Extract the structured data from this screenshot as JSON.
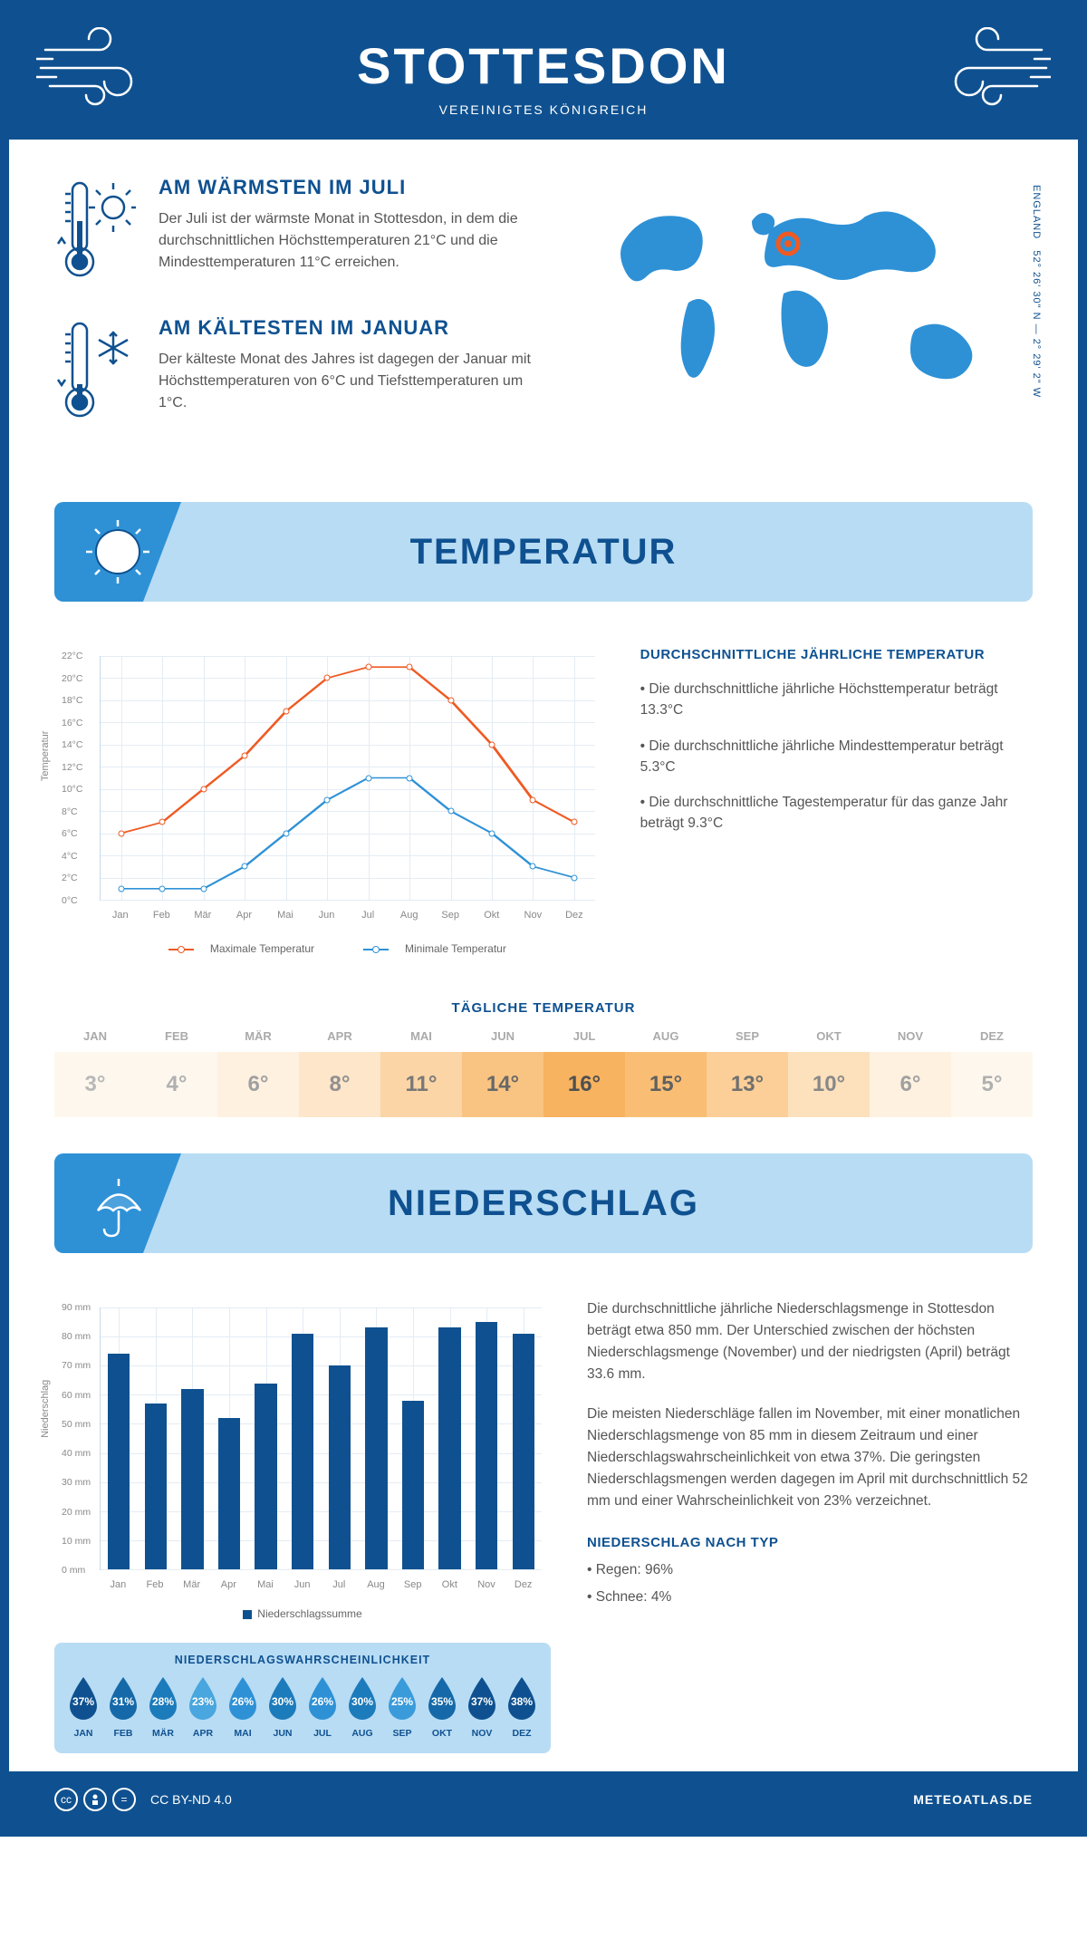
{
  "header": {
    "title": "STOTTESDON",
    "subtitle": "VEREINIGTES KÖNIGREICH"
  },
  "coords": "52° 26' 30\" N — 2° 29' 2\" W",
  "region_label": "ENGLAND",
  "facts": {
    "warm": {
      "title": "AM WÄRMSTEN IM JULI",
      "text": "Der Juli ist der wärmste Monat in Stottesdon, in dem die durchschnittlichen Höchsttemperaturen 21°C und die Mindesttemperaturen 11°C erreichen."
    },
    "cold": {
      "title": "AM KÄLTESTEN IM JANUAR",
      "text": "Der kälteste Monat des Jahres ist dagegen der Januar mit Höchsttemperaturen von 6°C und Tiefsttemperaturen um 1°C."
    }
  },
  "temp_section_title": "TEMPERATUR",
  "precip_section_title": "NIEDERSCHLAG",
  "months": [
    "Jan",
    "Feb",
    "Mär",
    "Apr",
    "Mai",
    "Jun",
    "Jul",
    "Aug",
    "Sep",
    "Okt",
    "Nov",
    "Dez"
  ],
  "months_uc": [
    "JAN",
    "FEB",
    "MÄR",
    "APR",
    "MAI",
    "JUN",
    "JUL",
    "AUG",
    "SEP",
    "OKT",
    "NOV",
    "DEZ"
  ],
  "temp_chart": {
    "type": "line",
    "ylabel": "Temperatur",
    "ylim": [
      0,
      22
    ],
    "ytick_step": 2,
    "ytick_suffix": "°C",
    "series": [
      {
        "name": "Maximale Temperatur",
        "color": "#ef5a23",
        "values": [
          6,
          7,
          10,
          13,
          17,
          20,
          21,
          21,
          18,
          14,
          9,
          7
        ]
      },
      {
        "name": "Minimale Temperatur",
        "color": "#2e91d6",
        "values": [
          1,
          1,
          1,
          3,
          6,
          9,
          11,
          11,
          8,
          6,
          3,
          2
        ]
      }
    ],
    "grid_color": "#e4ecf4",
    "tick_color": "#888888"
  },
  "temp_facts": {
    "heading": "DURCHSCHNITTLICHE JÄHRLICHE TEMPERATUR",
    "bullets": [
      "• Die durchschnittliche jährliche Höchsttemperatur beträgt 13.3°C",
      "• Die durchschnittliche jährliche Mindesttemperatur beträgt 5.3°C",
      "• Die durchschnittliche Tagestemperatur für das ganze Jahr beträgt 9.3°C"
    ]
  },
  "daily_temp": {
    "heading": "TÄGLICHE TEMPERATUR",
    "values": [
      "3°",
      "4°",
      "6°",
      "8°",
      "11°",
      "14°",
      "16°",
      "15°",
      "13°",
      "10°",
      "6°",
      "5°"
    ],
    "cell_bg": [
      "#fef7ee",
      "#fef7ee",
      "#fef1e0",
      "#fde6c9",
      "#fbd5a5",
      "#f9c482",
      "#f7b35f",
      "#f9be74",
      "#fbcf97",
      "#fde0bc",
      "#fef1e0",
      "#fef7ee"
    ],
    "text_color": [
      "#b8b8b8",
      "#b0b0b0",
      "#a0a0a0",
      "#909090",
      "#787878",
      "#686868",
      "#505050",
      "#606060",
      "#707070",
      "#888888",
      "#a0a0a0",
      "#b0b0b0"
    ]
  },
  "precip_chart": {
    "type": "bar",
    "ylabel": "Niederschlag",
    "ylim": [
      0,
      90
    ],
    "ytick_step": 10,
    "ytick_suffix": " mm",
    "values": [
      74,
      57,
      62,
      52,
      64,
      81,
      70,
      83,
      58,
      83,
      85,
      81
    ],
    "bar_color": "#0f5190",
    "bar_width_ratio": 0.6,
    "legend": "Niederschlagssumme",
    "grid_color": "#e4ecf4"
  },
  "precip_text": {
    "p1": "Die durchschnittliche jährliche Niederschlagsmenge in Stottesdon beträgt etwa 850 mm. Der Unterschied zwischen der höchsten Niederschlagsmenge (November) und der niedrigsten (April) beträgt 33.6 mm.",
    "p2": "Die meisten Niederschläge fallen im November, mit einer monatlichen Niederschlagsmenge von 85 mm in diesem Zeitraum und einer Niederschlagswahrscheinlichkeit von etwa 37%. Die geringsten Niederschlagsmengen werden dagegen im April mit durchschnittlich 52 mm und einer Wahrscheinlichkeit von 23% verzeichnet.",
    "type_heading": "NIEDERSCHLAG NACH TYP",
    "types": [
      "• Regen: 96%",
      "• Schnee: 4%"
    ]
  },
  "precip_prob": {
    "heading": "NIEDERSCHLAGSWAHRSCHEINLICHKEIT",
    "values": [
      "37%",
      "31%",
      "28%",
      "23%",
      "26%",
      "30%",
      "26%",
      "30%",
      "25%",
      "35%",
      "37%",
      "38%"
    ],
    "colors": [
      "#0f5190",
      "#1569a8",
      "#1c7bbb",
      "#49a6de",
      "#2e91d6",
      "#1c7bbb",
      "#2e91d6",
      "#1c7bbb",
      "#3a9bda",
      "#1569a8",
      "#0f5190",
      "#0f5190"
    ]
  },
  "footer": {
    "license": "CC BY-ND 4.0",
    "site": "METEOATLAS.DE"
  },
  "colors": {
    "primary": "#0f5190",
    "secondary": "#2e91d6",
    "light": "#b8dcf4",
    "orange": "#ef5a23"
  }
}
